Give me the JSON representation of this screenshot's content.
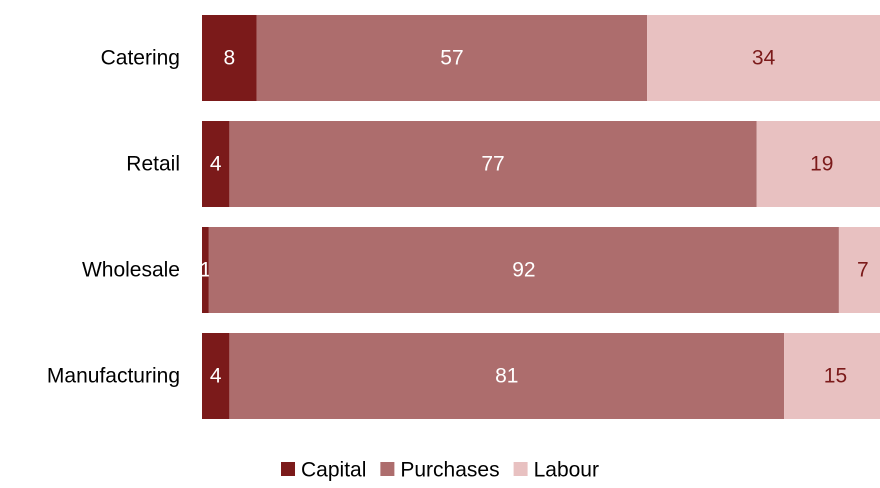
{
  "chart_data": {
    "type": "bar",
    "orientation": "horizontal",
    "stacked": true,
    "categories": [
      "Catering",
      "Retail",
      "Wholesale",
      "Manufacturing"
    ],
    "series": [
      {
        "name": "Capital",
        "values": [
          8,
          4,
          1,
          4
        ],
        "color": "#7b1a1a"
      },
      {
        "name": "Purchases",
        "values": [
          57,
          77,
          92,
          81
        ],
        "color": "#ad6d6d"
      },
      {
        "name": "Labour",
        "values": [
          34,
          19,
          7,
          15
        ],
        "color": "#e8c1c1"
      }
    ],
    "label_colors": [
      "#ffffff",
      "#ffffff",
      "#7b1a1a"
    ],
    "xlim": [
      0,
      99
    ],
    "grid": false,
    "legend": "bottom"
  }
}
